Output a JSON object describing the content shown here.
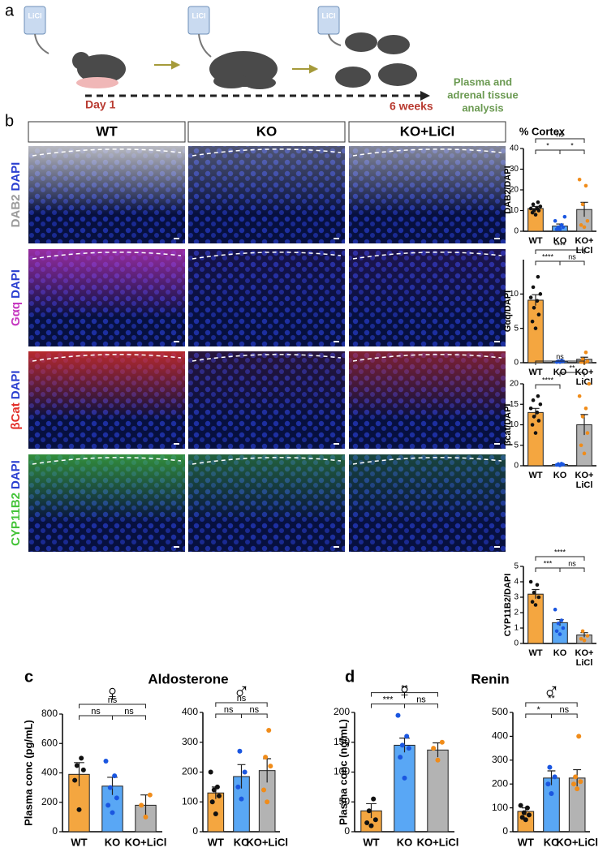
{
  "panel_labels": [
    "a",
    "b",
    "c",
    "d"
  ],
  "timeline": {
    "drug_labels": [
      "LiCl",
      "LiCl",
      "LiCl"
    ],
    "start": "Day 1",
    "end": "6 weeks",
    "outcome": [
      "Plasma and",
      "adrenal tissue",
      "analysis"
    ]
  },
  "microscopy": {
    "columns": [
      "WT",
      "KO",
      "KO+LiCl"
    ],
    "rows": [
      [
        "DAB2",
        "DAPI"
      ],
      [
        "Gαq",
        "DAPI"
      ],
      [
        "βCat",
        "DAPI"
      ],
      [
        "CYP11B2",
        "DAPI"
      ]
    ]
  },
  "cortex_title": "% Cortex",
  "section_titles": [
    "Aldosterone",
    "Renin"
  ],
  "chart_data": [
    {
      "type": "bar",
      "ylabel": "DAB2/DAPI",
      "categories": [
        "WT",
        "KO",
        "KO+\nLiCl"
      ],
      "values": [
        11,
        2.5,
        10.5
      ],
      "errors": [
        1,
        1,
        3.5
      ],
      "points": [
        [
          8,
          9,
          10,
          10,
          11,
          11,
          12,
          13,
          14
        ],
        [
          1,
          1,
          2,
          2,
          3,
          5,
          7
        ],
        [
          2,
          3,
          5,
          13,
          22,
          25
        ]
      ],
      "bar_colors": [
        "#f4a640",
        "#59a7f5",
        "#b3b3b3"
      ],
      "point_colors": [
        "#111111",
        "#1a56e0",
        "#f08c1a"
      ],
      "ylim": [
        0,
        40
      ],
      "yticks": [
        0,
        10,
        20,
        30,
        40
      ],
      "comparisons": [
        {
          "pair": [
            0,
            1
          ],
          "label": "*"
        },
        {
          "pair": [
            1,
            2
          ],
          "label": "*"
        },
        {
          "pair": [
            0,
            2
          ],
          "label": "ns"
        }
      ]
    },
    {
      "type": "bar",
      "ylabel": "Gαq/DAPI",
      "categories": [
        "WT",
        "KO",
        "KO+\nLiCl"
      ],
      "values": [
        9.1,
        0.2,
        0.5
      ],
      "errors": [
        0.8,
        0.05,
        0.3
      ],
      "points": [
        [
          5,
          6,
          7,
          8,
          9,
          9.5,
          10,
          11,
          12.5
        ],
        [
          0.1,
          0.1,
          0.2,
          0.2,
          0.3
        ],
        [
          0,
          0.1,
          0.2,
          0.5,
          1.5
        ]
      ],
      "bar_colors": [
        "#f4a640",
        "#59a7f5",
        "#b3b3b3"
      ],
      "point_colors": [
        "#111111",
        "#1a56e0",
        "#f08c1a"
      ],
      "ylim": [
        0,
        15
      ],
      "yticks": [
        0,
        5,
        10
      ],
      "comparisons": [
        {
          "pair": [
            0,
            1
          ],
          "label": "****"
        },
        {
          "pair": [
            1,
            2
          ],
          "label": "ns"
        },
        {
          "pair": [
            0,
            2
          ],
          "label": "****"
        }
      ]
    },
    {
      "type": "bar",
      "ylabel": "βcat/DAPI",
      "categories": [
        "WT",
        "KO",
        "KO+\nLiCl"
      ],
      "values": [
        13,
        0.3,
        10
      ],
      "errors": [
        1,
        0.1,
        2.5
      ],
      "points": [
        [
          8,
          10,
          11,
          12,
          13,
          14,
          15,
          16,
          17
        ],
        [
          0.1,
          0.2,
          0.3,
          0.4,
          0.5
        ],
        [
          3,
          5,
          8,
          12,
          14,
          17,
          20
        ]
      ],
      "bar_colors": [
        "#f4a640",
        "#59a7f5",
        "#b3b3b3"
      ],
      "point_colors": [
        "#111111",
        "#1a56e0",
        "#f08c1a"
      ],
      "ylim": [
        0,
        20
      ],
      "yticks": [
        0,
        5,
        10,
        15,
        20
      ],
      "comparisons": [
        {
          "pair": [
            0,
            1
          ],
          "label": "****"
        },
        {
          "pair": [
            1,
            2
          ],
          "label": "**"
        },
        {
          "pair": [
            0,
            2
          ],
          "label": "ns"
        }
      ]
    },
    {
      "type": "bar",
      "ylabel": "CYP11B2/DAPI",
      "categories": [
        "WT",
        "KO",
        "KO+\nLiCl"
      ],
      "values": [
        3.2,
        1.35,
        0.55
      ],
      "errors": [
        0.3,
        0.2,
        0.15
      ],
      "points": [
        [
          2.5,
          2.7,
          3,
          3.3,
          3.8,
          4
        ],
        [
          0.6,
          0.8,
          1,
          1.3,
          1.5,
          2.2
        ],
        [
          0.2,
          0.3,
          0.5,
          0.8
        ]
      ],
      "bar_colors": [
        "#f4a640",
        "#59a7f5",
        "#b3b3b3"
      ],
      "point_colors": [
        "#111111",
        "#1a56e0",
        "#f08c1a"
      ],
      "ylim": [
        0,
        5
      ],
      "yticks": [
        0,
        1,
        2,
        3,
        4,
        5
      ],
      "comparisons": [
        {
          "pair": [
            0,
            1
          ],
          "label": "***"
        },
        {
          "pair": [
            1,
            2
          ],
          "label": "ns"
        },
        {
          "pair": [
            0,
            2
          ],
          "label": "****"
        }
      ]
    },
    {
      "type": "bar",
      "sex": "♀",
      "ylabel": "Plasma conc (pg/mL)",
      "categories": [
        "WT",
        "KO",
        "KO+LiCl"
      ],
      "values": [
        390,
        310,
        180
      ],
      "errors": [
        80,
        60,
        70
      ],
      "points": [
        [
          150,
          350,
          420,
          450,
          500
        ],
        [
          130,
          180,
          230,
          300,
          380,
          480
        ],
        [
          100,
          180,
          250
        ]
      ],
      "bar_colors": [
        "#f4a640",
        "#59a7f5",
        "#b3b3b3"
      ],
      "point_colors": [
        "#111111",
        "#1a56e0",
        "#f08c1a"
      ],
      "ylim": [
        0,
        800
      ],
      "yticks": [
        0,
        200,
        400,
        600,
        800
      ],
      "comparisons": [
        {
          "pair": [
            0,
            1
          ],
          "label": "ns"
        },
        {
          "pair": [
            1,
            2
          ],
          "label": "ns"
        },
        {
          "pair": [
            0,
            2
          ],
          "label": "ns"
        }
      ]
    },
    {
      "type": "bar",
      "sex": "♂",
      "categories": [
        "WT",
        "KO",
        "KO+LiCl"
      ],
      "values": [
        130,
        185,
        205
      ],
      "errors": [
        20,
        40,
        40
      ],
      "points": [
        [
          60,
          100,
          120,
          140,
          150,
          200
        ],
        [
          110,
          150,
          200,
          270
        ],
        [
          100,
          140,
          220,
          250,
          340
        ]
      ],
      "bar_colors": [
        "#f4a640",
        "#59a7f5",
        "#b3b3b3"
      ],
      "point_colors": [
        "#111111",
        "#1a56e0",
        "#f08c1a"
      ],
      "ylim": [
        0,
        400
      ],
      "yticks": [
        0,
        100,
        200,
        300,
        400
      ],
      "comparisons": [
        {
          "pair": [
            0,
            1
          ],
          "label": "ns"
        },
        {
          "pair": [
            1,
            2
          ],
          "label": "ns"
        },
        {
          "pair": [
            0,
            2
          ],
          "label": "ns"
        }
      ]
    },
    {
      "type": "bar",
      "sex": "♀",
      "ylabel": "Plasma conc (ng/mL)",
      "categories": [
        "WT",
        "KO",
        "KO+LiCl"
      ],
      "values": [
        35,
        145,
        137
      ],
      "errors": [
        12,
        12,
        12
      ],
      "points": [
        [
          10,
          15,
          20,
          35,
          55
        ],
        [
          90,
          125,
          140,
          145,
          160,
          195
        ],
        [
          120,
          140,
          150
        ]
      ],
      "bar_colors": [
        "#f4a640",
        "#59a7f5",
        "#b3b3b3"
      ],
      "point_colors": [
        "#111111",
        "#1a56e0",
        "#f08c1a"
      ],
      "ylim": [
        0,
        200
      ],
      "yticks": [
        0,
        50,
        100,
        150,
        200
      ],
      "comparisons": [
        {
          "pair": [
            0,
            1
          ],
          "label": "***"
        },
        {
          "pair": [
            1,
            2
          ],
          "label": "ns"
        },
        {
          "pair": [
            0,
            2
          ],
          "label": "**"
        }
      ]
    },
    {
      "type": "bar",
      "sex": "♂",
      "categories": [
        "WT",
        "KO",
        "KO+LiCl"
      ],
      "values": [
        85,
        225,
        225
      ],
      "errors": [
        15,
        30,
        35
      ],
      "points": [
        [
          50,
          60,
          70,
          80,
          100,
          110
        ],
        [
          160,
          200,
          230,
          270
        ],
        [
          180,
          200,
          210,
          230,
          400
        ]
      ],
      "bar_colors": [
        "#f4a640",
        "#59a7f5",
        "#b3b3b3"
      ],
      "point_colors": [
        "#111111",
        "#1a56e0",
        "#f08c1a"
      ],
      "ylim": [
        0,
        500
      ],
      "yticks": [
        0,
        100,
        200,
        300,
        400,
        500
      ],
      "comparisons": [
        {
          "pair": [
            0,
            1
          ],
          "label": "*"
        },
        {
          "pair": [
            1,
            2
          ],
          "label": "ns"
        },
        {
          "pair": [
            0,
            2
          ],
          "label": "**"
        }
      ]
    }
  ]
}
